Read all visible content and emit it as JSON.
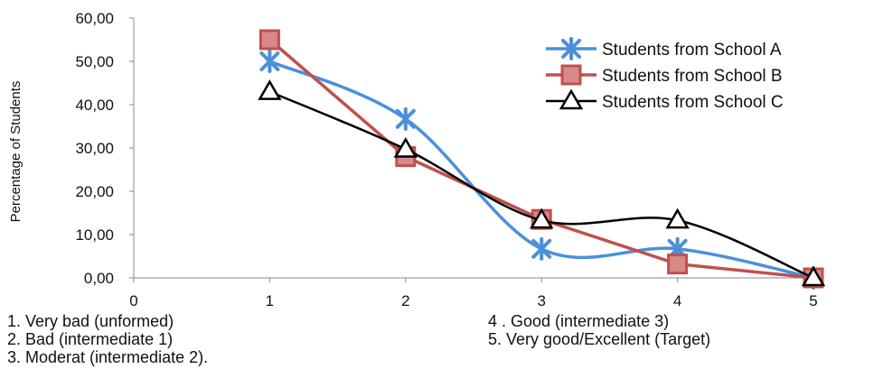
{
  "chart_data": {
    "type": "line",
    "ylabel": "Percentage of Students",
    "xlabel": "",
    "x": [
      1,
      2,
      3,
      4,
      5
    ],
    "xlim": [
      0,
      5
    ],
    "ylim": [
      0,
      60
    ],
    "xticks": [
      "0",
      "1",
      "2",
      "3",
      "4",
      "5"
    ],
    "yticks": [
      "0,00",
      "10,00",
      "20,00",
      "30,00",
      "40,00",
      "50,00",
      "60,00"
    ],
    "grid": false,
    "legend_position": "top-right",
    "series": [
      {
        "name": "Students from School A",
        "values": [
          50.0,
          36.7,
          6.7,
          6.7,
          0.0
        ],
        "color": "#4a90d9",
        "marker": "asterisk",
        "smooth": true
      },
      {
        "name": "Students from School B",
        "values": [
          55.0,
          28.0,
          13.5,
          3.2,
          0.0
        ],
        "color": "#c0504d",
        "marker": "square",
        "smooth": false
      },
      {
        "name": "Students from School C",
        "values": [
          43.0,
          29.7,
          13.3,
          13.3,
          0.0
        ],
        "color": "#000000",
        "marker": "triangle",
        "smooth": true
      }
    ],
    "category_notes": [
      "1. Very bad (unformed)",
      "2. Bad (intermediate 1)",
      "3. Moderat (intermediate 2).",
      "4 .   Good (intermediate 3)",
      "5.   Very good/Excellent (Target)"
    ]
  }
}
